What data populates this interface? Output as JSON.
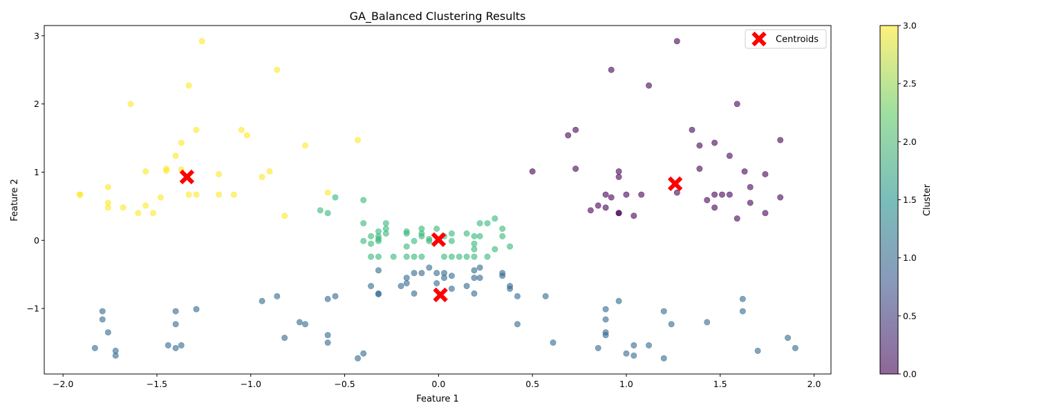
{
  "chart_data": {
    "type": "scatter",
    "title": "GA_Balanced Clustering Results",
    "xlabel": "Feature 1",
    "ylabel": "Feature 2",
    "xlim": [
      -2.1,
      2.09
    ],
    "ylim": [
      -1.96,
      3.15
    ],
    "xticks": [
      -2.0,
      -1.5,
      -1.0,
      -0.5,
      0.0,
      0.5,
      1.0,
      1.5,
      2.0
    ],
    "xtick_labels": [
      "−2.0",
      "−1.5",
      "−1.0",
      "−0.5",
      "0.0",
      "0.5",
      "1.0",
      "1.5",
      "2.0"
    ],
    "yticks": [
      -1,
      0,
      1,
      2,
      3
    ],
    "ytick_labels": [
      "−1",
      "0",
      "1",
      "2",
      "3"
    ],
    "grid": false,
    "legend": {
      "position": "top-right",
      "entries": [
        "Centroids"
      ]
    },
    "colorbar": {
      "label": "Cluster",
      "range": [
        0.0,
        3.0
      ],
      "ticks": [
        0.0,
        0.5,
        1.0,
        1.5,
        2.0,
        2.5,
        3.0
      ],
      "tick_labels": [
        "0.0",
        "0.5",
        "1.0",
        "1.5",
        "2.0",
        "2.5",
        "3.0"
      ],
      "colormap": [
        "#440154",
        "#3b528b",
        "#21918c",
        "#5ec962",
        "#fde725"
      ]
    },
    "cluster_colors": {
      "0": "#440154",
      "1": "#31688e",
      "2": "#35b779",
      "3": "#fde725"
    },
    "point_alpha": 0.6,
    "centroid_color": "#ff0000",
    "centroids": [
      {
        "x": -1.34,
        "y": 0.93
      },
      {
        "x": 0.0,
        "y": 0.01
      },
      {
        "x": 0.01,
        "y": -0.8
      },
      {
        "x": 1.26,
        "y": 0.83
      }
    ],
    "series": [
      {
        "cluster": 3,
        "points": [
          [
            -1.26,
            2.92
          ],
          [
            -0.86,
            2.5
          ],
          [
            -1.33,
            2.27
          ],
          [
            -1.64,
            2.0
          ],
          [
            -1.29,
            1.62
          ],
          [
            -1.05,
            1.62
          ],
          [
            -1.02,
            1.54
          ],
          [
            -1.37,
            1.43
          ],
          [
            -0.43,
            1.47
          ],
          [
            -0.71,
            1.39
          ],
          [
            -1.4,
            1.24
          ],
          [
            -1.45,
            1.05
          ],
          [
            -1.45,
            1.02
          ],
          [
            -1.37,
            1.04
          ],
          [
            -1.56,
            1.01
          ],
          [
            -0.9,
            1.01
          ],
          [
            -1.17,
            0.97
          ],
          [
            -0.94,
            0.93
          ],
          [
            -1.76,
            0.78
          ],
          [
            -1.91,
            0.67
          ],
          [
            -1.91,
            0.67
          ],
          [
            -1.33,
            0.67
          ],
          [
            -1.29,
            0.67
          ],
          [
            -1.17,
            0.67
          ],
          [
            -1.09,
            0.67
          ],
          [
            -0.59,
            0.7
          ],
          [
            -1.48,
            0.63
          ],
          [
            -1.76,
            0.55
          ],
          [
            -1.76,
            0.48
          ],
          [
            -1.68,
            0.48
          ],
          [
            -1.56,
            0.51
          ],
          [
            -1.6,
            0.4
          ],
          [
            -1.52,
            0.4
          ],
          [
            -0.82,
            0.36
          ]
        ]
      },
      {
        "cluster": 2,
        "points": [
          [
            -0.55,
            0.63
          ],
          [
            -0.4,
            0.59
          ],
          [
            -0.63,
            0.44
          ],
          [
            -0.59,
            0.4
          ],
          [
            -0.4,
            0.25
          ],
          [
            -0.28,
            0.25
          ],
          [
            -0.28,
            0.17
          ],
          [
            -0.28,
            0.1
          ],
          [
            -0.32,
            0.13
          ],
          [
            -0.32,
            0.06
          ],
          [
            -0.32,
            0.02
          ],
          [
            -0.32,
            -0.01
          ],
          [
            -0.36,
            0.06
          ],
          [
            -0.36,
            -0.05
          ],
          [
            -0.4,
            -0.01
          ],
          [
            -0.17,
            0.13
          ],
          [
            -0.17,
            0.1
          ],
          [
            -0.09,
            0.17
          ],
          [
            -0.09,
            0.1
          ],
          [
            -0.09,
            0.06
          ],
          [
            -0.05,
            0.02
          ],
          [
            -0.05,
            -0.01
          ],
          [
            -0.01,
            0.17
          ],
          [
            0.03,
            0.06
          ],
          [
            0.07,
            0.1
          ],
          [
            0.07,
            -0.01
          ],
          [
            -0.13,
            -0.01
          ],
          [
            -0.17,
            -0.09
          ],
          [
            0.15,
            0.1
          ],
          [
            0.19,
            0.06
          ],
          [
            0.19,
            -0.05
          ],
          [
            0.19,
            -0.13
          ],
          [
            0.22,
            0.25
          ],
          [
            0.22,
            0.06
          ],
          [
            0.26,
            0.25
          ],
          [
            0.3,
            0.32
          ],
          [
            0.3,
            -0.13
          ],
          [
            0.34,
            0.17
          ],
          [
            0.34,
            0.06
          ],
          [
            0.38,
            -0.09
          ],
          [
            -0.36,
            -0.24
          ],
          [
            -0.32,
            -0.24
          ],
          [
            -0.24,
            -0.24
          ],
          [
            -0.17,
            -0.24
          ],
          [
            -0.13,
            -0.24
          ],
          [
            -0.09,
            -0.24
          ],
          [
            0.03,
            -0.24
          ],
          [
            0.07,
            -0.24
          ],
          [
            0.11,
            -0.24
          ],
          [
            0.15,
            -0.24
          ],
          [
            0.19,
            -0.24
          ],
          [
            0.26,
            -0.24
          ]
        ]
      },
      {
        "cluster": 1,
        "points": [
          [
            -0.32,
            -0.44
          ],
          [
            -0.05,
            -0.4
          ],
          [
            -0.13,
            -0.48
          ],
          [
            -0.09,
            -0.48
          ],
          [
            -0.01,
            -0.48
          ],
          [
            0.03,
            -0.48
          ],
          [
            0.03,
            -0.55
          ],
          [
            0.07,
            -0.52
          ],
          [
            -0.17,
            -0.55
          ],
          [
            -0.17,
            -0.63
          ],
          [
            -0.2,
            -0.67
          ],
          [
            -0.36,
            -0.67
          ],
          [
            -0.01,
            -0.63
          ],
          [
            0.07,
            -0.71
          ],
          [
            0.15,
            -0.67
          ],
          [
            0.19,
            -0.44
          ],
          [
            0.19,
            -0.55
          ],
          [
            0.22,
            -0.4
          ],
          [
            0.22,
            -0.55
          ],
          [
            0.34,
            -0.48
          ],
          [
            0.34,
            -0.52
          ],
          [
            0.38,
            -0.67
          ],
          [
            0.38,
            -0.71
          ],
          [
            0.19,
            -0.78
          ],
          [
            -0.13,
            -0.78
          ],
          [
            -0.32,
            -0.78
          ],
          [
            -0.32,
            -0.79
          ],
          [
            0.42,
            -0.82
          ],
          [
            0.57,
            -0.82
          ],
          [
            0.42,
            -1.23
          ],
          [
            -0.55,
            -0.82
          ],
          [
            -0.59,
            -0.86
          ],
          [
            -0.86,
            -0.82
          ],
          [
            -0.94,
            -0.89
          ],
          [
            -1.29,
            -1.01
          ],
          [
            -1.4,
            -1.04
          ],
          [
            -1.4,
            -1.23
          ],
          [
            -1.79,
            -1.04
          ],
          [
            -1.79,
            -1.16
          ],
          [
            -1.76,
            -1.35
          ],
          [
            -1.83,
            -1.58
          ],
          [
            -1.72,
            -1.62
          ],
          [
            -1.72,
            -1.69
          ],
          [
            -1.44,
            -1.54
          ],
          [
            -1.4,
            -1.58
          ],
          [
            -1.37,
            -1.54
          ],
          [
            -0.82,
            -1.43
          ],
          [
            -0.74,
            -1.2
          ],
          [
            -0.71,
            -1.23
          ],
          [
            -0.59,
            -1.39
          ],
          [
            -0.59,
            -1.5
          ],
          [
            -0.4,
            -1.66
          ],
          [
            -0.43,
            -1.73
          ],
          [
            0.61,
            -1.5
          ],
          [
            0.85,
            -1.58
          ],
          [
            0.89,
            -1.01
          ],
          [
            0.89,
            -1.16
          ],
          [
            0.89,
            -1.35
          ],
          [
            0.89,
            -1.39
          ],
          [
            0.96,
            -0.89
          ],
          [
            1.0,
            -1.66
          ],
          [
            1.04,
            -1.54
          ],
          [
            1.04,
            -1.69
          ],
          [
            1.12,
            -1.54
          ],
          [
            1.2,
            -1.04
          ],
          [
            1.2,
            -1.73
          ],
          [
            1.24,
            -1.23
          ],
          [
            1.43,
            -1.2
          ],
          [
            1.62,
            -0.86
          ],
          [
            1.62,
            -1.04
          ],
          [
            1.7,
            -1.62
          ],
          [
            1.86,
            -1.43
          ],
          [
            1.9,
            -1.58
          ]
        ]
      },
      {
        "cluster": 0,
        "points": [
          [
            1.27,
            2.92
          ],
          [
            0.92,
            2.5
          ],
          [
            1.12,
            2.27
          ],
          [
            1.59,
            2.0
          ],
          [
            0.73,
            1.62
          ],
          [
            0.69,
            1.54
          ],
          [
            1.35,
            1.62
          ],
          [
            1.39,
            1.39
          ],
          [
            1.47,
            1.43
          ],
          [
            1.55,
            1.24
          ],
          [
            1.82,
            1.47
          ],
          [
            0.5,
            1.01
          ],
          [
            0.73,
            1.05
          ],
          [
            0.96,
            1.01
          ],
          [
            0.96,
            0.93
          ],
          [
            1.39,
            1.05
          ],
          [
            1.63,
            1.01
          ],
          [
            1.74,
            0.97
          ],
          [
            1.66,
            0.78
          ],
          [
            1.27,
            0.7
          ],
          [
            0.89,
            0.67
          ],
          [
            1.0,
            0.67
          ],
          [
            1.08,
            0.67
          ],
          [
            0.92,
            0.63
          ],
          [
            1.47,
            0.67
          ],
          [
            1.51,
            0.67
          ],
          [
            1.55,
            0.67
          ],
          [
            1.43,
            0.59
          ],
          [
            1.82,
            0.63
          ],
          [
            0.85,
            0.51
          ],
          [
            0.89,
            0.48
          ],
          [
            0.81,
            0.44
          ],
          [
            1.47,
            0.48
          ],
          [
            1.66,
            0.55
          ],
          [
            0.96,
            0.4
          ],
          [
            0.96,
            0.4
          ],
          [
            1.04,
            0.36
          ],
          [
            1.74,
            0.4
          ],
          [
            1.59,
            0.32
          ]
        ]
      }
    ]
  }
}
